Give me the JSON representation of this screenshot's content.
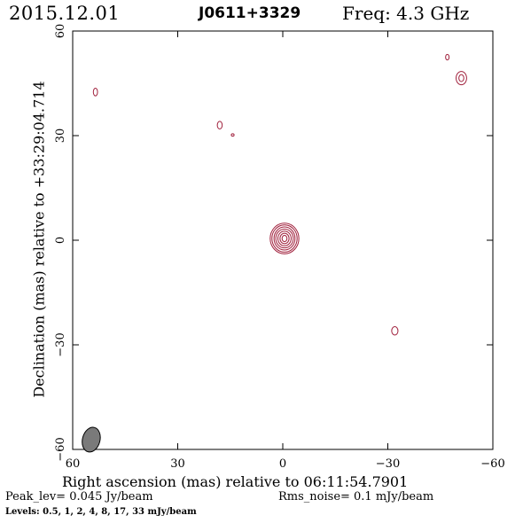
{
  "header": {
    "date": "2015.12.01",
    "source": "J0611+3329",
    "frequency": "Freq: 4.3 GHz"
  },
  "footer": {
    "peak": "Peak_lev=  0.045 Jy/beam",
    "rms": "Rms_noise=  0.1 mJy/beam",
    "levels": "Levels: 0.5,   1,   2,   4,   8,  17,  33 mJy/beam"
  },
  "colors": {
    "contour": "#a0203c",
    "beam_fill": "#7a7a7a",
    "axes": "#000000"
  },
  "chart_data": {
    "type": "contour",
    "xlabel": "Right ascension (mas) relative to 06:11:54.7901",
    "ylabel": "Declination (mas) relative to +33:29:04.714",
    "xlim": [
      60,
      -60
    ],
    "ylim": [
      -60,
      60
    ],
    "xticks": [
      60,
      30,
      0,
      -30,
      -60
    ],
    "yticks": [
      60,
      30,
      0,
      -30,
      -60
    ],
    "xtick_labels": [
      "60",
      "30",
      "0",
      "−30",
      "−60"
    ],
    "ytick_labels": [
      "60",
      "30",
      "0",
      "−30",
      "−60"
    ],
    "levels_mJy": [
      0.5,
      1,
      2,
      4,
      8,
      17,
      33
    ],
    "peak_Jy_per_beam": 0.045,
    "rms_mJy_per_beam": 0.1,
    "core": {
      "x": -0.5,
      "y": 0.5,
      "rings": [
        {
          "rx": 4.1,
          "ry": 4.4
        },
        {
          "rx": 3.6,
          "ry": 3.9
        },
        {
          "rx": 3.0,
          "ry": 3.3
        },
        {
          "rx": 2.5,
          "ry": 2.7
        },
        {
          "rx": 1.9,
          "ry": 2.1
        },
        {
          "rx": 1.3,
          "ry": 1.5
        },
        {
          "rx": 0.7,
          "ry": 0.9
        }
      ]
    },
    "features": [
      {
        "x": 53.5,
        "y": 42.5,
        "rx": 0.6,
        "ry": 1.1
      },
      {
        "x": 18.0,
        "y": 33.0,
        "rx": 0.7,
        "ry": 1.1
      },
      {
        "x": 14.3,
        "y": 30.2,
        "rx": 0.4,
        "ry": 0.35
      },
      {
        "x": -47.0,
        "y": 52.5,
        "rx": 0.5,
        "ry": 0.8
      },
      {
        "x": -51.0,
        "y": 46.5,
        "rx": 1.5,
        "ry": 1.9
      },
      {
        "x": -51.0,
        "y": 46.5,
        "rx": 0.7,
        "ry": 1.0
      },
      {
        "x": -32.0,
        "y": -26.0,
        "rx": 0.9,
        "ry": 1.2
      }
    ],
    "beam": {
      "x": 54.7,
      "y": -57.2,
      "major": 3.6,
      "minor": 2.5,
      "pa_deg": 15
    }
  }
}
